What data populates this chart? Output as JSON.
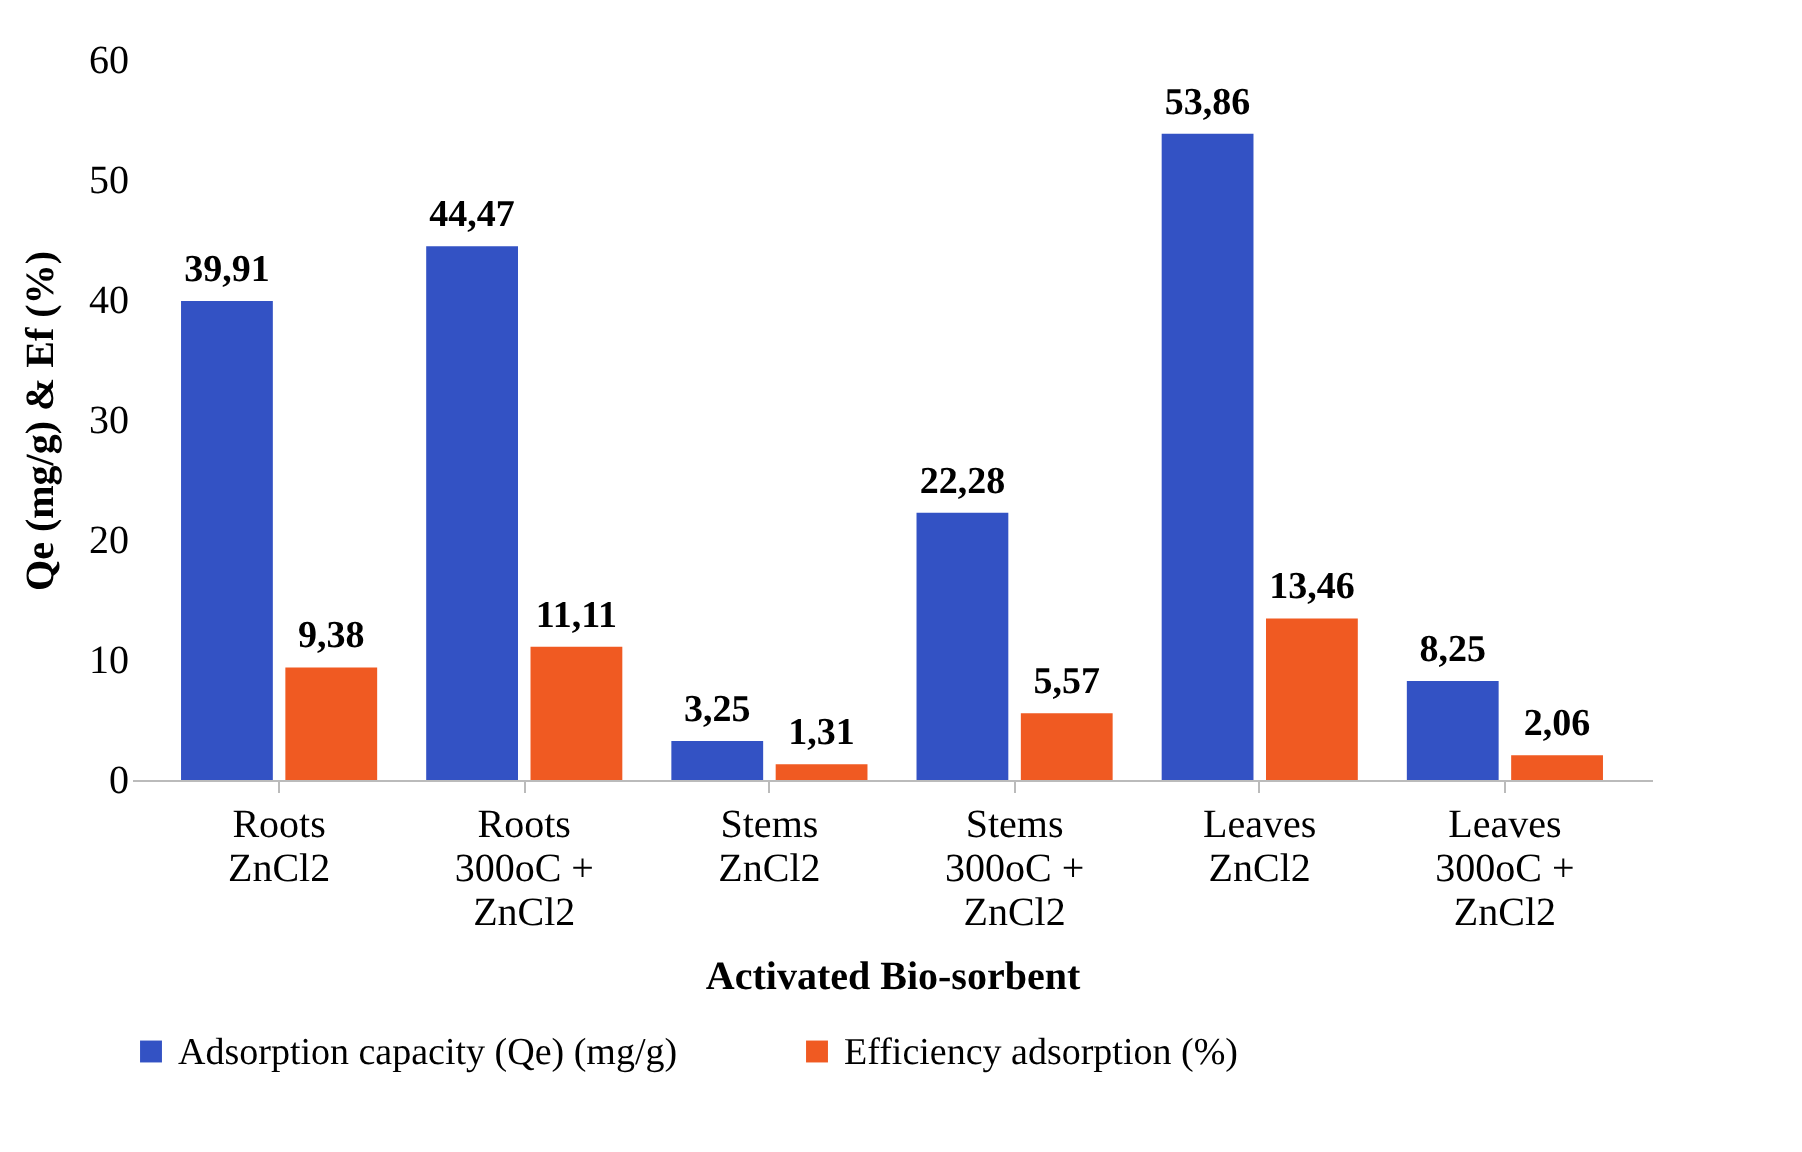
{
  "chart_data": {
    "type": "bar",
    "xlabel": "Activated Bio-sorbent",
    "ylabel": "Qe (mg/g) & Ef (%)",
    "categories": [
      "Roots ZnCl2",
      "Roots 300oC + ZnCl2",
      "Stems ZnCl2",
      "Stems 300oC + ZnCl2",
      "Leaves ZnCl2",
      "Leaves 300oC + ZnCl2"
    ],
    "series": [
      {
        "name": "Adsorption capacity (Qe) (mg/g)",
        "color": "#3352c4",
        "values": [
          39.91,
          44.47,
          3.25,
          22.28,
          53.86,
          8.25
        ],
        "value_labels": [
          "39,91",
          "44,47",
          "3,25",
          "22,28",
          "53,86",
          "8,25"
        ]
      },
      {
        "name": "Efficiency adsorption (%)",
        "color": "#f05a22",
        "values": [
          9.38,
          11.11,
          1.31,
          5.57,
          13.46,
          2.06
        ],
        "value_labels": [
          "9,38",
          "11,11",
          "1,31",
          "5,57",
          "13,46",
          "2,06"
        ]
      }
    ],
    "ylim": [
      0,
      60
    ],
    "yticks": [
      0,
      10,
      20,
      30,
      40,
      50,
      60
    ],
    "grid": false,
    "legend": "bottom"
  }
}
